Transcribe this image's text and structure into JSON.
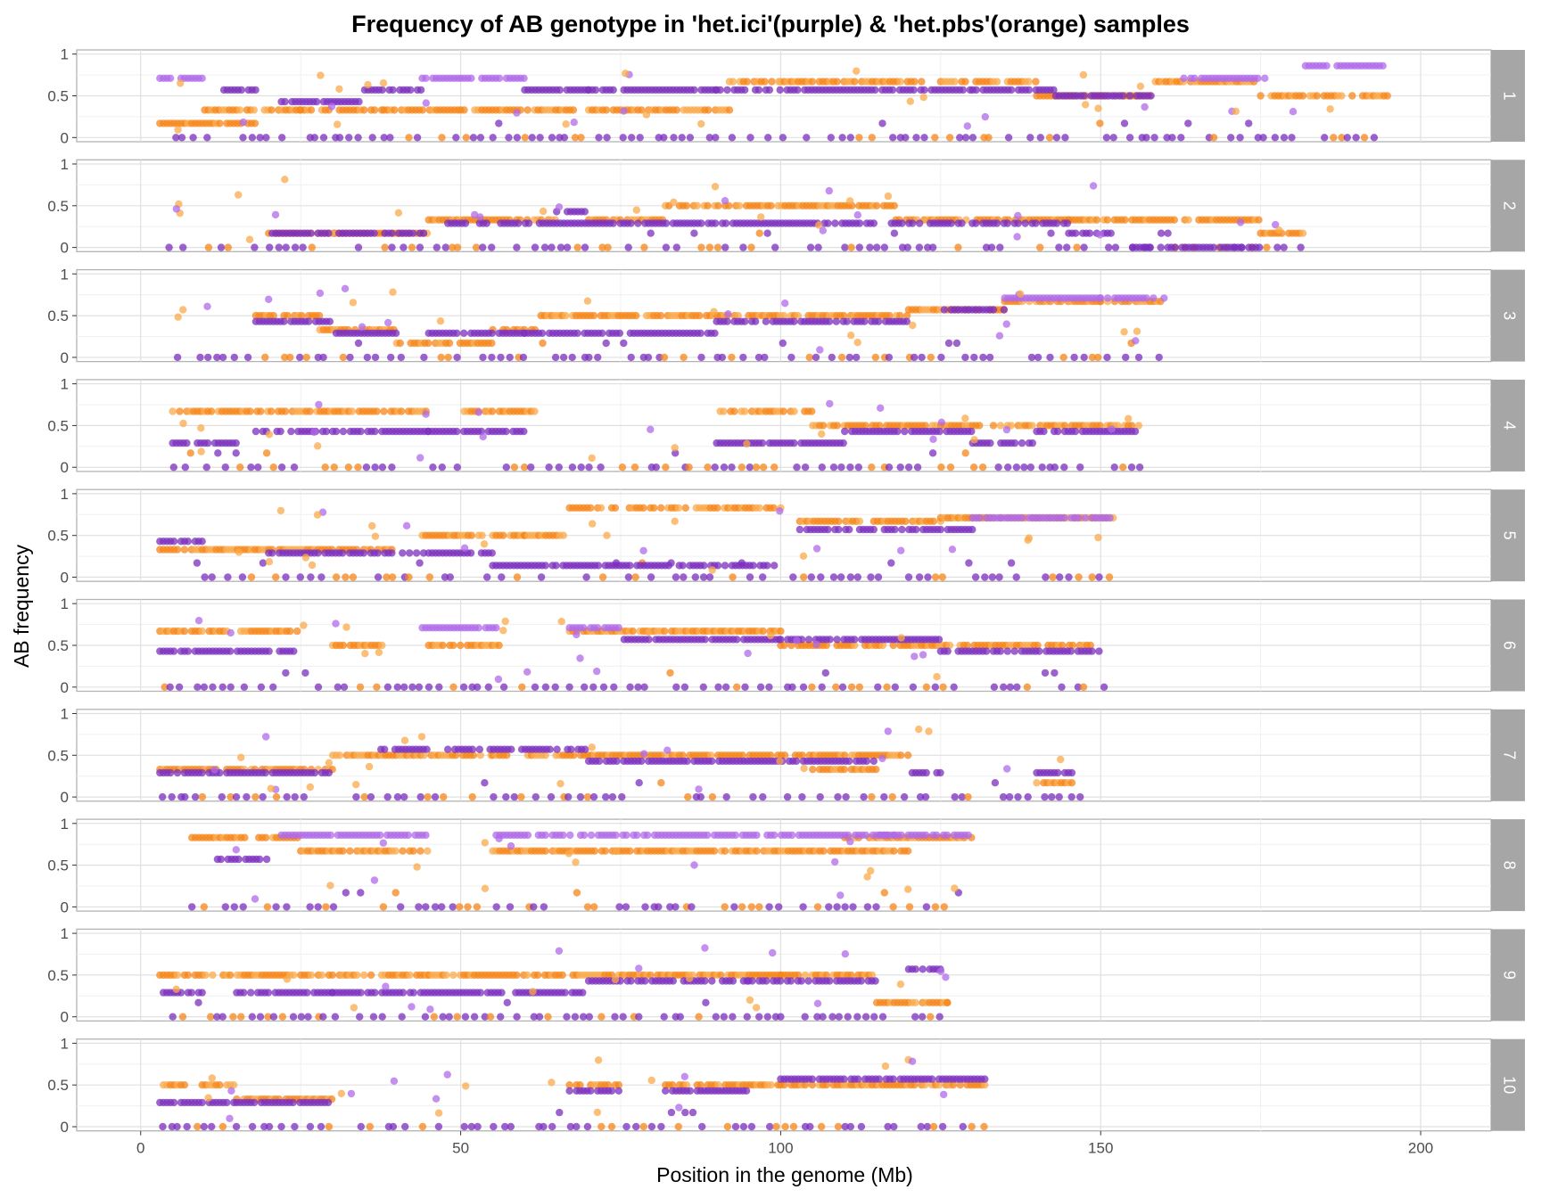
{
  "chart_data": {
    "type": "scatter",
    "title": "Frequency of AB genotype in 'het.ici'(purple) & 'het.pbs'(orange) samples",
    "xlabel": "Position in the genome (Mb)",
    "ylabel": "AB frequency",
    "xlim": [
      -10,
      211
    ],
    "ylim": [
      -0.05,
      1.05
    ],
    "x_ticks": [
      0,
      50,
      100,
      150,
      200
    ],
    "y_ticks": [
      0,
      0.5,
      1
    ],
    "y_tick_labels": [
      "0",
      "0.5",
      "1"
    ],
    "facet_layout": "rows, strip labels on right",
    "grid": true,
    "colors": {
      "het.ici": "#7B2FBE",
      "het.ici_light": "#B06AE8",
      "het.pbs": "#F58518",
      "het.pbs_light": "#F9A94B",
      "strip_bg": "#a6a6a6",
      "panel_border": "#b3b3b3",
      "grid_major": "#e0e0e0",
      "grid_minor": "#f0f0f0"
    },
    "series_names": [
      "het.ici",
      "het.pbs"
    ],
    "panels": [
      {
        "label": "1",
        "xmax": 195,
        "pbs": [
          [
            3,
            18,
            0.17
          ],
          [
            10,
            25,
            0.33
          ],
          [
            25,
            38,
            0.33
          ],
          [
            38,
            50,
            0.33
          ],
          [
            50,
            68,
            0.33
          ],
          [
            70,
            92,
            0.33
          ],
          [
            92,
            100,
            0.67
          ],
          [
            100,
            122,
            0.67
          ],
          [
            125,
            140,
            0.67
          ],
          [
            140,
            158,
            0.5
          ],
          [
            158,
            175,
            0.67
          ],
          [
            175,
            195,
            0.5
          ]
        ],
        "ici": [
          [
            3,
            10,
            0.71
          ],
          [
            13,
            18,
            0.57
          ],
          [
            22,
            35,
            0.43
          ],
          [
            35,
            44,
            0.57
          ],
          [
            44,
            50,
            0.71
          ],
          [
            50,
            60,
            0.71
          ],
          [
            60,
            70,
            0.57
          ],
          [
            70,
            90,
            0.57
          ],
          [
            90,
            130,
            0.57
          ],
          [
            130,
            143,
            0.57
          ],
          [
            143,
            158,
            0.5
          ],
          [
            163,
            176,
            0.71
          ],
          [
            182,
            195,
            0.86
          ]
        ],
        "zero": [
          5,
          195
        ]
      },
      {
        "label": "2",
        "xmax": 182,
        "pbs": [
          [
            20,
            45,
            0.17
          ],
          [
            45,
            65,
            0.33
          ],
          [
            70,
            82,
            0.33
          ],
          [
            82,
            118,
            0.5
          ],
          [
            118,
            145,
            0.33
          ],
          [
            145,
            175,
            0.33
          ],
          [
            175,
            182,
            0.17
          ]
        ],
        "ici": [
          [
            20,
            45,
            0.17
          ],
          [
            48,
            70,
            0.29
          ],
          [
            65,
            70,
            0.43
          ],
          [
            70,
            145,
            0.29
          ],
          [
            145,
            152,
            0.17
          ],
          [
            155,
            175,
            0.0
          ]
        ],
        "zero": [
          4,
          182
        ]
      },
      {
        "label": "3",
        "xmax": 160,
        "pbs": [
          [
            18,
            28,
            0.5
          ],
          [
            28,
            40,
            0.33
          ],
          [
            40,
            55,
            0.17
          ],
          [
            55,
            62,
            0.33
          ],
          [
            62,
            120,
            0.5
          ],
          [
            120,
            135,
            0.57
          ],
          [
            135,
            150,
            0.67
          ],
          [
            150,
            160,
            0.67
          ]
        ],
        "ici": [
          [
            18,
            30,
            0.43
          ],
          [
            30,
            40,
            0.29
          ],
          [
            45,
            60,
            0.29
          ],
          [
            60,
            90,
            0.29
          ],
          [
            90,
            120,
            0.43
          ],
          [
            125,
            135,
            0.57
          ],
          [
            135,
            150,
            0.71
          ],
          [
            150,
            160,
            0.71
          ]
        ],
        "zero": [
          5,
          160
        ]
      },
      {
        "label": "4",
        "xmax": 156,
        "pbs": [
          [
            5,
            45,
            0.67
          ],
          [
            50,
            62,
            0.67
          ],
          [
            90,
            105,
            0.67
          ],
          [
            105,
            125,
            0.5
          ],
          [
            125,
            140,
            0.5
          ],
          [
            140,
            156,
            0.5
          ]
        ],
        "ici": [
          [
            5,
            15,
            0.29
          ],
          [
            18,
            30,
            0.43
          ],
          [
            30,
            45,
            0.43
          ],
          [
            45,
            60,
            0.43
          ],
          [
            90,
            110,
            0.29
          ],
          [
            110,
            130,
            0.43
          ],
          [
            130,
            140,
            0.29
          ],
          [
            140,
            156,
            0.43
          ]
        ],
        "zero": [
          5,
          156
        ]
      },
      {
        "label": "5",
        "xmax": 152,
        "pbs": [
          [
            3,
            20,
            0.33
          ],
          [
            20,
            40,
            0.33
          ],
          [
            44,
            60,
            0.5
          ],
          [
            60,
            67,
            0.5
          ],
          [
            67,
            100,
            0.83
          ],
          [
            103,
            125,
            0.67
          ],
          [
            125,
            152,
            0.71
          ]
        ],
        "ici": [
          [
            3,
            10,
            0.43
          ],
          [
            20,
            45,
            0.29
          ],
          [
            45,
            55,
            0.29
          ],
          [
            55,
            100,
            0.14
          ],
          [
            103,
            130,
            0.57
          ],
          [
            130,
            152,
            0.71
          ]
        ],
        "zero": [
          8,
          152
        ]
      },
      {
        "label": "6",
        "xmax": 150,
        "pbs": [
          [
            3,
            25,
            0.67
          ],
          [
            30,
            38,
            0.5
          ],
          [
            45,
            56,
            0.5
          ],
          [
            67,
            100,
            0.67
          ],
          [
            100,
            150,
            0.5
          ]
        ],
        "ici": [
          [
            3,
            25,
            0.43
          ],
          [
            44,
            56,
            0.71
          ],
          [
            67,
            75,
            0.71
          ],
          [
            75,
            100,
            0.57
          ],
          [
            100,
            125,
            0.57
          ],
          [
            125,
            150,
            0.43
          ]
        ],
        "zero": [
          3,
          150
        ]
      },
      {
        "label": "7",
        "xmax": 146,
        "pbs": [
          [
            3,
            30,
            0.33
          ],
          [
            30,
            55,
            0.5
          ],
          [
            55,
            120,
            0.5
          ],
          [
            105,
            115,
            0.33
          ],
          [
            140,
            146,
            0.17
          ]
        ],
        "ici": [
          [
            3,
            30,
            0.29
          ],
          [
            37,
            45,
            0.57
          ],
          [
            48,
            70,
            0.57
          ],
          [
            70,
            115,
            0.43
          ],
          [
            120,
            125,
            0.29
          ],
          [
            140,
            146,
            0.29
          ]
        ],
        "zero": [
          3,
          146
        ]
      },
      {
        "label": "8",
        "xmax": 130,
        "pbs": [
          [
            8,
            25,
            0.83
          ],
          [
            25,
            45,
            0.67
          ],
          [
            55,
            120,
            0.67
          ],
          [
            110,
            130,
            0.83
          ]
        ],
        "ici": [
          [
            12,
            20,
            0.57
          ],
          [
            22,
            45,
            0.86
          ],
          [
            55,
            118,
            0.86
          ],
          [
            115,
            130,
            0.86
          ]
        ],
        "zero": [
          8,
          130
        ]
      },
      {
        "label": "9",
        "xmax": 126,
        "pbs": [
          [
            3,
            45,
            0.5
          ],
          [
            45,
            100,
            0.5
          ],
          [
            100,
            115,
            0.5
          ],
          [
            115,
            126,
            0.17
          ]
        ],
        "ici": [
          [
            3,
            10,
            0.29
          ],
          [
            15,
            30,
            0.29
          ],
          [
            30,
            70,
            0.29
          ],
          [
            70,
            95,
            0.43
          ],
          [
            95,
            115,
            0.43
          ],
          [
            120,
            126,
            0.57
          ]
        ],
        "zero": [
          5,
          126
        ]
      },
      {
        "label": "10",
        "xmax": 132,
        "pbs": [
          [
            3,
            15,
            0.5
          ],
          [
            15,
            30,
            0.33
          ],
          [
            67,
            75,
            0.5
          ],
          [
            82,
            100,
            0.5
          ],
          [
            100,
            132,
            0.5
          ]
        ],
        "ici": [
          [
            3,
            15,
            0.29
          ],
          [
            15,
            30,
            0.29
          ],
          [
            67,
            75,
            0.43
          ],
          [
            82,
            95,
            0.43
          ],
          [
            100,
            132,
            0.57
          ]
        ],
        "zero": [
          3,
          132
        ]
      }
    ]
  }
}
